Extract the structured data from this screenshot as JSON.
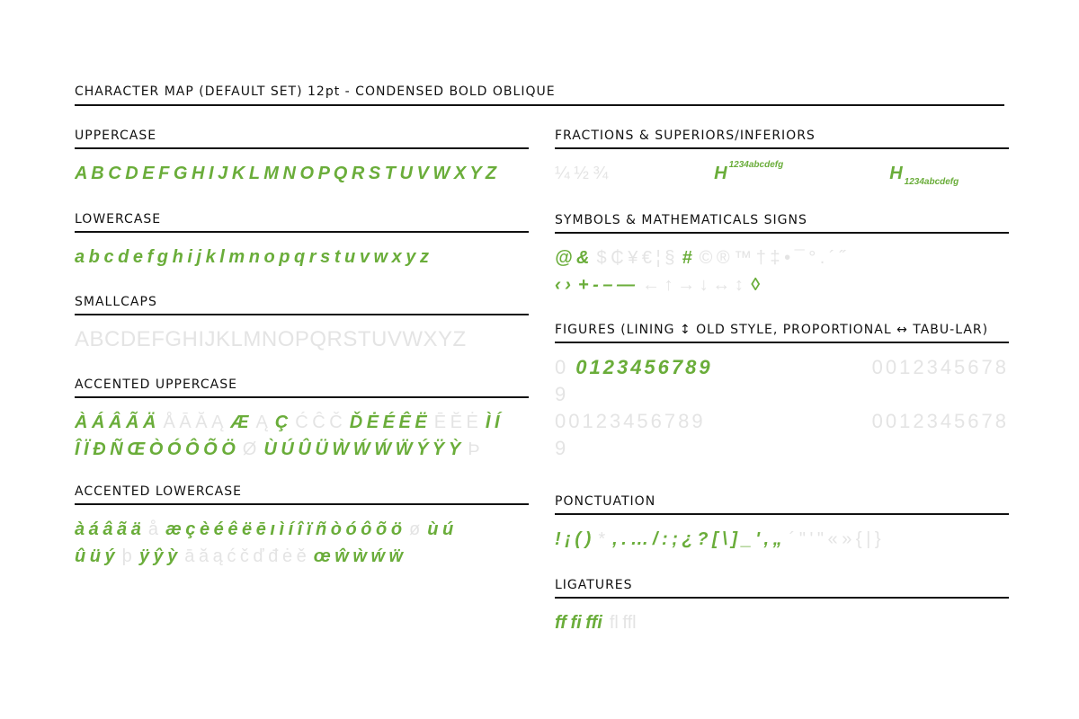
{
  "header": {
    "title": "CHARACTER MAP (DEFAULT SET) 12pt - CONDENSED BOLD OBLIQUE"
  },
  "left": [
    {
      "title": "UPPERCASE",
      "rows": [
        [
          {
            "text": "A B C D E F G H I J K L M N O P Q R S T U V W X Y Z",
            "supported": true
          }
        ]
      ]
    },
    {
      "title": "LOWERCASE",
      "rows": [
        [
          {
            "text": "a b c d e f g h i j k l m n o p q r s t u v w x y z",
            "supported": true
          }
        ]
      ]
    },
    {
      "title": "SMALLCAPS",
      "rows": [
        [
          {
            "text": "ABCDEFGHIJKLMNOPQRSTUVWXYZ",
            "supported": false
          }
        ]
      ]
    },
    {
      "title": "ACCENTED UPPERCASE",
      "rows": [
        [
          {
            "text": "À Á Â Ã Ä",
            "supported": true
          },
          {
            "text": "Å Ā Ă Ą",
            "supported": false
          },
          {
            "text": "Æ",
            "supported": true
          },
          {
            "text": "Ą",
            "supported": false
          },
          {
            "text": "Ç",
            "supported": true
          },
          {
            "text": "Ć Ĉ Č",
            "supported": false
          },
          {
            "text": "Ď Ė É Ê Ë",
            "supported": true
          },
          {
            "text": "Ē Ĕ Ė",
            "supported": false
          },
          {
            "text": "Ì Í",
            "supported": true
          }
        ],
        [
          {
            "text": "Î Ï Đ Ñ Œ Ò Ó Ô Õ Ö",
            "supported": true
          },
          {
            "text": "Ø",
            "supported": false
          },
          {
            "text": "Ù Ú Û Ü Ẁ Ẃ Ẃ Ẅ Ý Ÿ Ỳ",
            "supported": true
          },
          {
            "text": "Þ",
            "supported": false
          }
        ]
      ]
    },
    {
      "title": "ACCENTED LOWERCASE",
      "rows": [
        [
          {
            "text": "à á â ã ä",
            "supported": true
          },
          {
            "text": "å",
            "supported": false
          },
          {
            "text": "æ ç è é ê ë ē ı ì í î ï ñ ò ó ô õ ö",
            "supported": true
          },
          {
            "text": "ø",
            "supported": false
          },
          {
            "text": "ù ú",
            "supported": true
          }
        ],
        [
          {
            "text": "û ü ý",
            "supported": true
          },
          {
            "text": "þ",
            "supported": false
          },
          {
            "text": "ÿ ŷ ỳ",
            "supported": true
          },
          {
            "text": "ā ă ą ć č ď đ ė ě",
            "supported": false
          },
          {
            "text": "œ ŵ ẁ ẃ ẅ",
            "supported": true
          }
        ]
      ]
    }
  ],
  "right": [
    {
      "title": "FRACTIONS & SUPERIORS/INFERIORS",
      "rows": [
        [
          {
            "text": "¼ ½ ¾",
            "supported": false
          },
          {
            "text": "H",
            "supported": true
          },
          {
            "text": "1234abcdefg",
            "supported": true,
            "script": "sup"
          },
          {
            "text": "H",
            "supported": true
          },
          {
            "text": "1234abcdefg",
            "supported": true,
            "script": "sub"
          }
        ]
      ]
    },
    {
      "title": "SYMBOLS & MATHEMATICALS SIGNS",
      "rows": [
        [
          {
            "text": "@ &",
            "supported": true
          },
          {
            "text": "$ ₵ ¥ € ¦ §",
            "supported": false
          },
          {
            "text": "#",
            "supported": true
          },
          {
            "text": "© ® ™ † ‡ • ¯ ° . ´ ˝",
            "supported": false
          }
        ],
        [
          {
            "text": "‹ ›",
            "supported": true
          },
          {
            "text": "+ - – —",
            "supported": true
          },
          {
            "text": "← ↑ → ↓ ↔ ↕",
            "supported": false
          },
          {
            "text": "◊",
            "supported": true
          }
        ]
      ]
    },
    {
      "title": "FIGURES (LINING ↕ OLD STYLE, PROPORTIONAL ↔ TABU-LAR)",
      "rows": [
        [
          {
            "text": "0",
            "supported": false
          },
          {
            "text": "0123456789",
            "supported": true
          },
          {
            "text": "0012345678",
            "supported": false
          }
        ],
        [
          {
            "text": "9",
            "supported": false
          }
        ],
        [
          {
            "text": "00123456789",
            "supported": false
          },
          {
            "text": "0012345678",
            "supported": false
          }
        ],
        [
          {
            "text": "9",
            "supported": false
          }
        ]
      ]
    },
    {
      "title": "PONCTUATION",
      "rows": [
        [
          {
            "text": "! ¡ ( )",
            "supported": true
          },
          {
            "text": "*",
            "supported": false
          },
          {
            "text": ", . … / : ; ¿ ? [ \\ ] _ ' , „",
            "supported": true
          },
          {
            "text": "´ \" ' \" « » { | }",
            "supported": false
          }
        ]
      ]
    },
    {
      "title": "LIGATURES",
      "rows": [
        [
          {
            "text": "ff fi ffi",
            "supported": true
          },
          {
            "text": "fl ffl",
            "supported": false
          }
        ]
      ]
    }
  ]
}
